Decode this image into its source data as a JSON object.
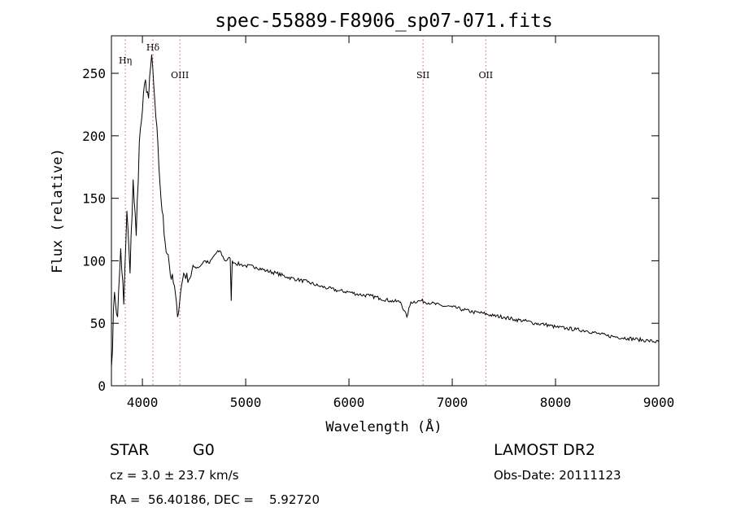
{
  "chart_data": {
    "type": "line",
    "title": "spec-55889-F8906_sp07-071.fits",
    "xlabel": "Wavelength (Å)",
    "ylabel": "Flux (relative)",
    "xlim": [
      3700,
      9000
    ],
    "ylim": [
      0,
      280
    ],
    "x_ticks": [
      4000,
      5000,
      6000,
      7000,
      8000,
      9000
    ],
    "y_ticks": [
      0,
      50,
      100,
      150,
      200,
      250
    ],
    "grid": false,
    "line_color": "#000000",
    "marker_color": "#d06060",
    "spectral_lines": [
      {
        "label": "Hη",
        "wavelength": 3835
      },
      {
        "label": "Hδ",
        "wavelength": 4102
      },
      {
        "label": "OIII",
        "wavelength": 4363
      },
      {
        "label": "SII",
        "wavelength": 6717
      },
      {
        "label": "OII",
        "wavelength": 7325
      }
    ],
    "x": [
      3700,
      3730,
      3760,
      3790,
      3820,
      3850,
      3880,
      3910,
      3940,
      3970,
      4000,
      4030,
      4060,
      4090,
      4110,
      4130,
      4160,
      4190,
      4220,
      4250,
      4280,
      4310,
      4340,
      4370,
      4400,
      4450,
      4500,
      4550,
      4600,
      4650,
      4700,
      4750,
      4800,
      4850,
      4860,
      4870,
      4900,
      4950,
      5000,
      5100,
      5200,
      5300,
      5400,
      5500,
      5600,
      5700,
      5800,
      5900,
      6000,
      6100,
      6200,
      6300,
      6400,
      6500,
      6560,
      6600,
      6700,
      6800,
      6900,
      7000,
      7100,
      7200,
      7300,
      7400,
      7500,
      7600,
      7700,
      7800,
      7900,
      8000,
      8100,
      8200,
      8300,
      8400,
      8500,
      8600,
      8700,
      8800,
      8900,
      9000
    ],
    "values": [
      15,
      75,
      55,
      110,
      65,
      140,
      90,
      165,
      120,
      195,
      220,
      245,
      230,
      265,
      240,
      215,
      175,
      140,
      115,
      105,
      85,
      80,
      55,
      75,
      90,
      85,
      95,
      95,
      100,
      98,
      105,
      108,
      100,
      102,
      68,
      100,
      98,
      97,
      96,
      95,
      92,
      90,
      87,
      85,
      83,
      80,
      78,
      76,
      75,
      73,
      72,
      70,
      68,
      67,
      55,
      67,
      68,
      66,
      64,
      63,
      61,
      59,
      58,
      56,
      55,
      53,
      52,
      50,
      49,
      47,
      46,
      45,
      44,
      42,
      40,
      39,
      38,
      37,
      36,
      35
    ]
  },
  "info": {
    "object_class": "STAR",
    "subclass": "G0",
    "survey": "LAMOST DR2",
    "redshift_line": "cz = 3.0 ± 23.7 km/s",
    "obs_date": "Obs-Date: 20111123",
    "coords": "RA =  56.40186, DEC =    5.92720"
  }
}
